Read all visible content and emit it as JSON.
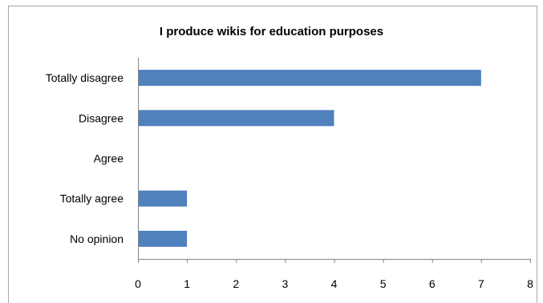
{
  "chart_data": {
    "type": "bar",
    "orientation": "horizontal",
    "title": "I produce  wikis for education purposes",
    "categories": [
      "Totally disagree",
      "Disagree",
      "Agree",
      "Totally agree",
      "No opinion"
    ],
    "values": [
      7,
      4,
      0,
      1,
      1
    ],
    "xlim": [
      0,
      8
    ],
    "xticks": [
      "0",
      "1",
      "2",
      "3",
      "4",
      "5",
      "6",
      "7",
      "8"
    ],
    "grid": false,
    "legend": "none",
    "bar_color": "#4f81bd"
  }
}
